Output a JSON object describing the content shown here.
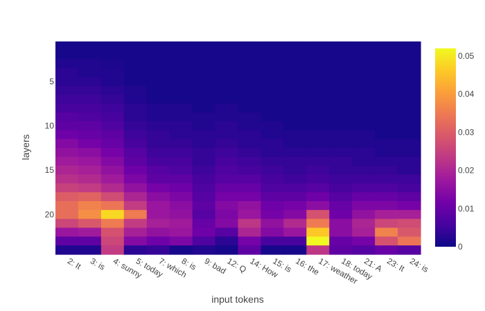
{
  "chart_data": {
    "type": "heatmap",
    "xlabel": "input tokens",
    "ylabel": "layers",
    "x_categories": [
      "2: It",
      "3: is",
      "4: sunny",
      "5: today",
      "7: which",
      "8: is",
      "9: bad",
      "12: Q",
      "14: How",
      "15: is",
      "16: the",
      "17: weather",
      "18: today",
      "21: A",
      "23: It",
      "24: is"
    ],
    "y_range": [
      1,
      24
    ],
    "y_ticks": [
      5,
      10,
      15,
      20
    ],
    "colorscale": "Plasma",
    "zmin": 0,
    "zmax": 0.052,
    "colorbar_ticks": [
      {
        "value": 0,
        "label": "0"
      },
      {
        "value": 0.01,
        "label": "0.01"
      },
      {
        "value": 0.02,
        "label": "0.02"
      },
      {
        "value": 0.03,
        "label": "0.03"
      },
      {
        "value": 0.04,
        "label": "0.04"
      },
      {
        "value": 0.05,
        "label": "0.05"
      }
    ],
    "z": [
      [
        0.001,
        0.001,
        0.001,
        0.001,
        0.001,
        0.001,
        0.001,
        0.001,
        0.001,
        0.001,
        0.001,
        0.001,
        0.001,
        0.001,
        0.001,
        0.001
      ],
      [
        0.001,
        0.001,
        0.001,
        0.001,
        0.001,
        0.001,
        0.001,
        0.001,
        0.001,
        0.001,
        0.001,
        0.001,
        0.001,
        0.001,
        0.001,
        0.001
      ],
      [
        0.002,
        0.002,
        0.0015,
        0.001,
        0.001,
        0.001,
        0.001,
        0.001,
        0.001,
        0.001,
        0.001,
        0.001,
        0.001,
        0.001,
        0.001,
        0.001
      ],
      [
        0.003,
        0.002,
        0.002,
        0.001,
        0.001,
        0.001,
        0.001,
        0.001,
        0.001,
        0.001,
        0.001,
        0.001,
        0.001,
        0.001,
        0.001,
        0.001
      ],
      [
        0.003,
        0.003,
        0.002,
        0.001,
        0.001,
        0.001,
        0.001,
        0.001,
        0.001,
        0.001,
        0.001,
        0.001,
        0.001,
        0.001,
        0.001,
        0.001
      ],
      [
        0.004,
        0.004,
        0.003,
        0.002,
        0.001,
        0.001,
        0.001,
        0.001,
        0.001,
        0.001,
        0.001,
        0.001,
        0.001,
        0.001,
        0.001,
        0.001
      ],
      [
        0.005,
        0.005,
        0.004,
        0.002,
        0.001,
        0.001,
        0.001,
        0.001,
        0.001,
        0.001,
        0.001,
        0.001,
        0.001,
        0.001,
        0.001,
        0.001
      ],
      [
        0.006,
        0.006,
        0.005,
        0.003,
        0.002,
        0.002,
        0.001,
        0.002,
        0.001,
        0.001,
        0.001,
        0.001,
        0.001,
        0.001,
        0.001,
        0.001
      ],
      [
        0.008,
        0.007,
        0.006,
        0.003,
        0.002,
        0.002,
        0.002,
        0.002,
        0.002,
        0.001,
        0.001,
        0.001,
        0.001,
        0.001,
        0.001,
        0.001
      ],
      [
        0.009,
        0.009,
        0.007,
        0.004,
        0.003,
        0.003,
        0.002,
        0.003,
        0.002,
        0.002,
        0.001,
        0.001,
        0.001,
        0.001,
        0.001,
        0.001
      ],
      [
        0.011,
        0.01,
        0.009,
        0.005,
        0.004,
        0.003,
        0.003,
        0.003,
        0.003,
        0.002,
        0.002,
        0.002,
        0.002,
        0.002,
        0.001,
        0.001
      ],
      [
        0.014,
        0.012,
        0.01,
        0.006,
        0.004,
        0.004,
        0.003,
        0.004,
        0.003,
        0.003,
        0.002,
        0.002,
        0.002,
        0.002,
        0.002,
        0.002
      ],
      [
        0.016,
        0.015,
        0.012,
        0.008,
        0.005,
        0.005,
        0.004,
        0.005,
        0.004,
        0.003,
        0.003,
        0.003,
        0.003,
        0.003,
        0.002,
        0.002
      ],
      [
        0.018,
        0.017,
        0.014,
        0.009,
        0.006,
        0.006,
        0.004,
        0.006,
        0.005,
        0.004,
        0.004,
        0.004,
        0.004,
        0.003,
        0.003,
        0.003
      ],
      [
        0.02,
        0.019,
        0.016,
        0.011,
        0.008,
        0.007,
        0.005,
        0.007,
        0.006,
        0.005,
        0.004,
        0.005,
        0.004,
        0.004,
        0.004,
        0.003
      ],
      [
        0.022,
        0.021,
        0.018,
        0.013,
        0.009,
        0.009,
        0.006,
        0.008,
        0.008,
        0.006,
        0.005,
        0.006,
        0.005,
        0.005,
        0.005,
        0.005
      ],
      [
        0.025,
        0.024,
        0.021,
        0.016,
        0.012,
        0.011,
        0.007,
        0.01,
        0.01,
        0.007,
        0.007,
        0.008,
        0.006,
        0.007,
        0.007,
        0.006
      ],
      [
        0.03,
        0.031,
        0.027,
        0.02,
        0.015,
        0.013,
        0.008,
        0.012,
        0.012,
        0.009,
        0.009,
        0.011,
        0.008,
        0.01,
        0.01,
        0.009
      ],
      [
        0.033,
        0.036,
        0.034,
        0.024,
        0.017,
        0.015,
        0.009,
        0.014,
        0.016,
        0.011,
        0.012,
        0.015,
        0.01,
        0.013,
        0.013,
        0.012
      ],
      [
        0.033,
        0.038,
        0.048,
        0.035,
        0.017,
        0.016,
        0.008,
        0.013,
        0.017,
        0.012,
        0.014,
        0.028,
        0.011,
        0.016,
        0.019,
        0.019
      ],
      [
        0.026,
        0.029,
        0.035,
        0.024,
        0.019,
        0.018,
        0.01,
        0.014,
        0.023,
        0.016,
        0.021,
        0.035,
        0.015,
        0.02,
        0.026,
        0.027
      ],
      [
        0.017,
        0.018,
        0.028,
        0.019,
        0.016,
        0.017,
        0.011,
        0.008,
        0.02,
        0.014,
        0.017,
        0.046,
        0.015,
        0.019,
        0.036,
        0.029
      ],
      [
        0.009,
        0.009,
        0.026,
        0.014,
        0.011,
        0.013,
        0.007,
        0.003,
        0.012,
        0.006,
        0.006,
        0.052,
        0.01,
        0.012,
        0.028,
        0.034
      ],
      [
        0.002,
        0.002,
        0.024,
        0.003,
        0.004,
        0.001,
        0.002,
        0.001,
        0.009,
        0.001,
        0.001,
        0.023,
        0.009,
        0.008,
        0.01,
        0.008
      ]
    ]
  }
}
